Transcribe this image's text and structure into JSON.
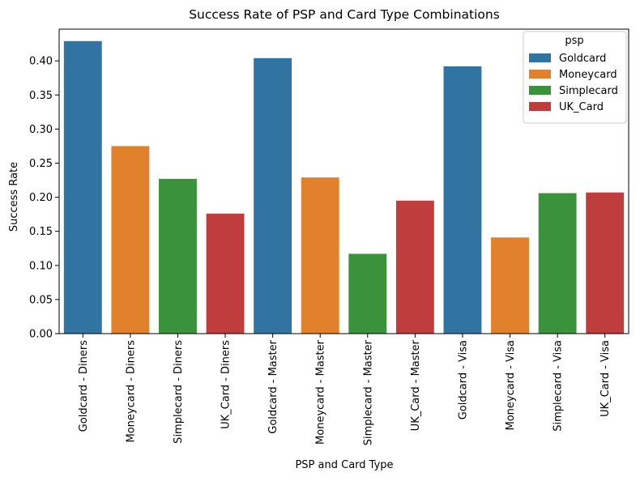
{
  "chart_data": {
    "type": "bar",
    "title": "Success Rate of PSP and Card Type Combinations",
    "xlabel": "PSP and Card Type",
    "ylabel": "Success Rate",
    "ylim": [
      0,
      0.4465
    ],
    "yticks": [
      "0.00",
      "0.05",
      "0.10",
      "0.15",
      "0.20",
      "0.25",
      "0.30",
      "0.35",
      "0.40"
    ],
    "grid": false,
    "legend": {
      "title": "psp",
      "placement": "top-right",
      "entries": [
        {
          "name": "Goldcard",
          "color": "#3274a1"
        },
        {
          "name": "Moneycard",
          "color": "#e1812c"
        },
        {
          "name": "Simplecard",
          "color": "#3a923a"
        },
        {
          "name": "UK_Card",
          "color": "#c03d3e"
        }
      ]
    },
    "categories": [
      "Goldcard - Diners",
      "Moneycard - Diners",
      "Simplecard - Diners",
      "UK_Card - Diners",
      "Goldcard - Master",
      "Moneycard - Master",
      "Simplecard - Master",
      "UK_Card - Master",
      "Goldcard - Visa",
      "Moneycard - Visa",
      "Simplecard - Visa",
      "UK_Card - Visa"
    ],
    "bar_psp": [
      "Goldcard",
      "Moneycard",
      "Simplecard",
      "UK_Card",
      "Goldcard",
      "Moneycard",
      "Simplecard",
      "UK_Card",
      "Goldcard",
      "Moneycard",
      "Simplecard",
      "UK_Card"
    ],
    "values": [
      0.429,
      0.275,
      0.227,
      0.176,
      0.404,
      0.229,
      0.117,
      0.195,
      0.392,
      0.141,
      0.206,
      0.207
    ]
  }
}
